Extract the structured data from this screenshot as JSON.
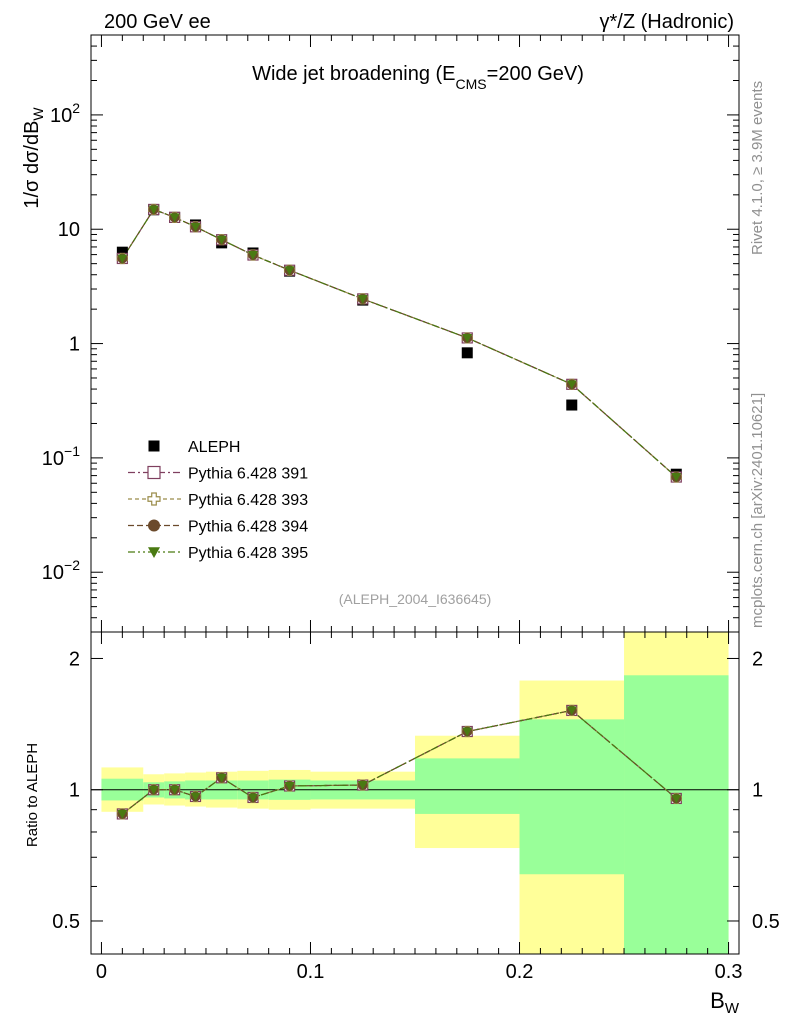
{
  "header": {
    "left": "200 GeV ee",
    "right": "γ*/Z (Hadronic)"
  },
  "side_labels": {
    "rivet": "Rivet 4.1.0, ≥ 3.9M events",
    "mcplots": "mcplots.cern.ch [arXiv:2401.10621]"
  },
  "chart_data": [
    {
      "type": "scatter",
      "panel": "main",
      "title": "Wide jet broadening (E_CMS=200 GeV)",
      "title_parts": {
        "a": "Wide jet broadening (E",
        "sub": "CMS",
        "b": "=200 GeV)"
      },
      "ylabel": "1/σ dσ/dB_W",
      "ylabel_parts": {
        "a": "1/σ  dσ/dB",
        "sub": "W"
      },
      "yscale": "log",
      "ylim": [
        0.003,
        500
      ],
      "xlim": [
        -0.005,
        0.305
      ],
      "y_ticks": [
        {
          "value": 0.01,
          "base": "10",
          "exp": "−2"
        },
        {
          "value": 0.1,
          "base": "10",
          "exp": "−1"
        },
        {
          "value": 1,
          "label": "1"
        },
        {
          "value": 10,
          "label": "10"
        },
        {
          "value": 100,
          "base": "10",
          "exp": "2"
        }
      ],
      "watermark": "(ALEPH_2004_I636645)",
      "legend_position": "lower-left",
      "series": [
        {
          "name": "ALEPH",
          "kind": "data",
          "color": "#000000",
          "marker": "square-filled",
          "x": [
            0.01,
            0.025,
            0.035,
            0.045,
            0.0575,
            0.0725,
            0.09,
            0.125,
            0.175,
            0.225,
            0.275
          ],
          "y": [
            6.3,
            14.8,
            12.7,
            10.9,
            7.6,
            6.2,
            4.3,
            2.4,
            0.83,
            0.29,
            0.072
          ]
        },
        {
          "name": "Pythia 6.428 391",
          "kind": "mc",
          "color": "#7f3f5f",
          "marker": "square-open",
          "dash": "7,3,2,3",
          "x": [
            0.01,
            0.025,
            0.035,
            0.045,
            0.0575,
            0.0725,
            0.09,
            0.125,
            0.175,
            0.225,
            0.275
          ],
          "y": [
            5.55,
            14.9,
            12.7,
            10.5,
            8.1,
            5.95,
            4.38,
            2.46,
            1.12,
            0.44,
            0.068
          ]
        },
        {
          "name": "Pythia 6.428 393",
          "kind": "mc",
          "color": "#9a8c4a",
          "marker": "cross-open",
          "dash": "4,3",
          "x": [
            0.01,
            0.025,
            0.035,
            0.045,
            0.0575,
            0.0725,
            0.09,
            0.125,
            0.175,
            0.225,
            0.275
          ],
          "y": [
            5.55,
            14.9,
            12.7,
            10.5,
            8.1,
            5.95,
            4.38,
            2.46,
            1.12,
            0.44,
            0.068
          ]
        },
        {
          "name": "Pythia 6.428 394",
          "kind": "mc",
          "color": "#6b4a2b",
          "marker": "circle-filled",
          "dash": "6,3",
          "x": [
            0.01,
            0.025,
            0.035,
            0.045,
            0.0575,
            0.0725,
            0.09,
            0.125,
            0.175,
            0.225,
            0.275
          ],
          "y": [
            5.55,
            14.9,
            12.7,
            10.5,
            8.1,
            5.95,
            4.38,
            2.46,
            1.12,
            0.44,
            0.068
          ]
        },
        {
          "name": "Pythia 6.428 395",
          "kind": "mc",
          "color": "#4a7a12",
          "marker": "triangle-down-filled",
          "dash": "7,3,2,3,2,3",
          "x": [
            0.01,
            0.025,
            0.035,
            0.045,
            0.0575,
            0.0725,
            0.09,
            0.125,
            0.175,
            0.225,
            0.275
          ],
          "y": [
            5.55,
            14.9,
            12.7,
            10.5,
            8.1,
            5.95,
            4.38,
            2.46,
            1.12,
            0.44,
            0.068
          ]
        }
      ]
    },
    {
      "type": "scatter",
      "panel": "ratio",
      "ylabel": "Ratio to ALEPH",
      "xlabel": "B_W",
      "xlabel_parts": {
        "a": "B",
        "sub": "W"
      },
      "yscale": "log",
      "ylim": [
        0.42,
        2.3
      ],
      "xlim": [
        -0.005,
        0.305
      ],
      "x_ticks": [
        {
          "value": 0,
          "label": "0"
        },
        {
          "value": 0.1,
          "label": "0.1"
        },
        {
          "value": 0.2,
          "label": "0.2"
        },
        {
          "value": 0.3,
          "label": "0.3"
        }
      ],
      "y_ticks": [
        {
          "value": 0.5,
          "label": "0.5"
        },
        {
          "value": 1,
          "label": "1"
        },
        {
          "value": 2,
          "label": "2"
        }
      ],
      "reference_line": 1,
      "bands": {
        "yellow": "#ffff99",
        "green": "#99ff99",
        "bins": [
          {
            "lo": 0.0,
            "hi": 0.02,
            "y_lo": 0.89,
            "y_hi": 1.125,
            "g_lo": 0.945,
            "g_hi": 1.06
          },
          {
            "lo": 0.02,
            "hi": 0.03,
            "y_lo": 0.925,
            "y_hi": 1.085,
            "g_lo": 0.96,
            "g_hi": 1.04
          },
          {
            "lo": 0.03,
            "hi": 0.04,
            "y_lo": 0.92,
            "y_hi": 1.09,
            "g_lo": 0.955,
            "g_hi": 1.045
          },
          {
            "lo": 0.04,
            "hi": 0.05,
            "y_lo": 0.915,
            "y_hi": 1.095,
            "g_lo": 0.95,
            "g_hi": 1.05
          },
          {
            "lo": 0.05,
            "hi": 0.065,
            "y_lo": 0.91,
            "y_hi": 1.1,
            "g_lo": 0.95,
            "g_hi": 1.05
          },
          {
            "lo": 0.065,
            "hi": 0.08,
            "y_lo": 0.905,
            "y_hi": 1.105,
            "g_lo": 0.95,
            "g_hi": 1.05
          },
          {
            "lo": 0.08,
            "hi": 0.1,
            "y_lo": 0.9,
            "y_hi": 1.11,
            "g_lo": 0.948,
            "g_hi": 1.055
          },
          {
            "lo": 0.1,
            "hi": 0.15,
            "y_lo": 0.905,
            "y_hi": 1.1,
            "g_lo": 0.95,
            "g_hi": 1.05
          },
          {
            "lo": 0.15,
            "hi": 0.2,
            "y_lo": 0.735,
            "y_hi": 1.33,
            "g_lo": 0.88,
            "g_hi": 1.18
          },
          {
            "lo": 0.2,
            "hi": 0.25,
            "y_lo": 0.42,
            "y_hi": 1.78,
            "g_lo": 0.64,
            "g_hi": 1.45
          },
          {
            "lo": 0.25,
            "hi": 0.3,
            "y_lo": 0.42,
            "y_hi": 2.3,
            "g_lo": 0.42,
            "g_hi": 1.83
          }
        ]
      },
      "series": [
        {
          "name": "Pythia 6.428 391",
          "color": "#7f3f5f",
          "marker": "square-open",
          "dash": "7,3,2,3",
          "x": [
            0.01,
            0.025,
            0.035,
            0.045,
            0.0575,
            0.0725,
            0.09,
            0.125,
            0.175,
            0.225,
            0.275
          ],
          "y": [
            0.88,
            1.0,
            1.0,
            0.965,
            1.065,
            0.96,
            1.02,
            1.025,
            1.36,
            1.52,
            0.955
          ]
        },
        {
          "name": "Pythia 6.428 393",
          "color": "#9a8c4a",
          "marker": "cross-open",
          "dash": "4,3",
          "x": [
            0.01,
            0.025,
            0.035,
            0.045,
            0.0575,
            0.0725,
            0.09,
            0.125,
            0.175,
            0.225,
            0.275
          ],
          "y": [
            0.88,
            1.0,
            1.0,
            0.965,
            1.065,
            0.96,
            1.02,
            1.025,
            1.36,
            1.52,
            0.955
          ]
        },
        {
          "name": "Pythia 6.428 394",
          "color": "#6b4a2b",
          "marker": "circle-filled",
          "dash": "6,3",
          "x": [
            0.01,
            0.025,
            0.035,
            0.045,
            0.0575,
            0.0725,
            0.09,
            0.125,
            0.175,
            0.225,
            0.275
          ],
          "y": [
            0.88,
            1.0,
            1.0,
            0.965,
            1.065,
            0.96,
            1.02,
            1.025,
            1.36,
            1.52,
            0.955
          ]
        },
        {
          "name": "Pythia 6.428 395",
          "color": "#4a7a12",
          "marker": "triangle-down-filled",
          "dash": "7,3,2,3,2,3",
          "x": [
            0.01,
            0.025,
            0.035,
            0.045,
            0.0575,
            0.0725,
            0.09,
            0.125,
            0.175,
            0.225,
            0.275
          ],
          "y": [
            0.88,
            1.0,
            1.0,
            0.965,
            1.065,
            0.96,
            1.02,
            1.025,
            1.36,
            1.52,
            0.955
          ]
        }
      ]
    }
  ]
}
